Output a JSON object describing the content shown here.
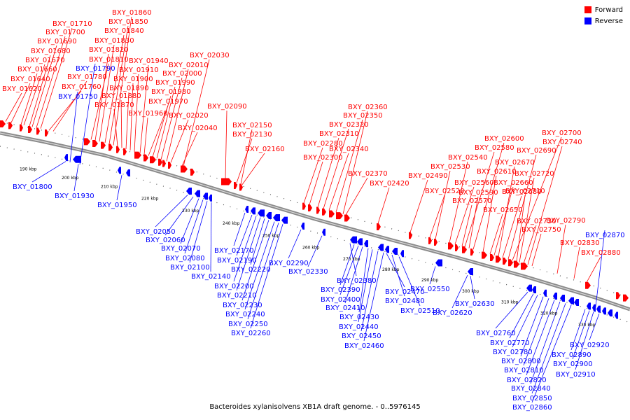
{
  "caption": "Bacteroides xylanisolvens XB1A draft genome. - 0..5976145",
  "legend": [
    {
      "label": "Forward",
      "color": "#ff0000"
    },
    {
      "label": "Reverse",
      "color": "#0000ff"
    }
  ],
  "colors": {
    "forward": "#ff0000",
    "reverse": "#0000ff",
    "backbone": "#8a8a8a"
  },
  "ticks": [
    "190 kbp",
    "200 kbp",
    "210 kbp",
    "220 kbp",
    "230 kbp",
    "240 kbp",
    "250 kbp",
    "260 kbp",
    "270 kbp",
    "280 kbp",
    "290 kbp",
    "300 kbp",
    "310 kbp",
    "320 kbp",
    "330 kbp"
  ],
  "forward_labels": [
    "BXY_01620",
    "BXY_01640",
    "BXY_01660",
    "BXY_01670",
    "BXY_01680",
    "BXY_01690",
    "BXY_01700",
    "BXY_01710",
    "BXY_01760",
    "BXY_01780",
    "BXY_01810",
    "BXY_01820",
    "BXY_01830",
    "BXY_01840",
    "BXY_01850",
    "BXY_01860",
    "BXY_01870",
    "BXY_01880",
    "BXY_01890",
    "BXY_01900",
    "BXY_01910",
    "BXY_01940",
    "BXY_01960",
    "BXY_01970",
    "BXY_01980",
    "BXY_01990",
    "BXY_02000",
    "BXY_02010",
    "BXY_02030",
    "BXY_02020",
    "BXY_02040",
    "BXY_02090",
    "BXY_02130",
    "BXY_02150",
    "BXY_02160",
    "BXY_02280",
    "BXY_02300",
    "BXY_02310",
    "BXY_02320",
    "BXY_02340",
    "BXY_02350",
    "BXY_02360",
    "BXY_02370",
    "BXY_02420",
    "BXY_02490",
    "BXY_02520",
    "BXY_02530",
    "BXY_02540",
    "BXY_02560",
    "BXY_02570",
    "BXY_02580",
    "BXY_02590",
    "BXY_02600",
    "BXY_02610",
    "BXY_02650",
    "BXY_02660",
    "BXY_02670",
    "BXY_02680",
    "BXY_02690",
    "BXY_02700",
    "BXY_02710",
    "BXY_02720",
    "BXY_02730",
    "BXY_02740",
    "BXY_02750",
    "BXY_02790",
    "BXY_02830",
    "BXY_02880"
  ],
  "reverse_labels": [
    "BXY_01790",
    "BXY_01750",
    "BXY_01800",
    "BXY_01930",
    "BXY_01950",
    "BXY_02050",
    "BXY_02060",
    "BXY_02070",
    "BXY_02080",
    "BXY_02100",
    "BXY_02140",
    "BXY_02170",
    "BXY_02190",
    "BXY_02200",
    "BXY_02210",
    "BXY_02220",
    "BXY_02230",
    "BXY_02240",
    "BXY_02250",
    "BXY_02260",
    "BXY_02290",
    "BXY_02330",
    "BXY_02380",
    "BXY_02390",
    "BXY_02400",
    "BXY_02410",
    "BXY_02430",
    "BXY_02440",
    "BXY_02450",
    "BXY_02460",
    "BXY_02470",
    "BXY_02480",
    "BXY_02510",
    "BXY_02550",
    "BXY_02620",
    "BXY_02630",
    "BXY_02760",
    "BXY_02770",
    "BXY_02780",
    "BXY_02800",
    "BXY_02810",
    "BXY_02820",
    "BXY_02840",
    "BXY_02850",
    "BXY_02860",
    "BXY_02870",
    "BXY_02890",
    "BXY_02900",
    "BXY_02910",
    "BXY_02920"
  ]
}
